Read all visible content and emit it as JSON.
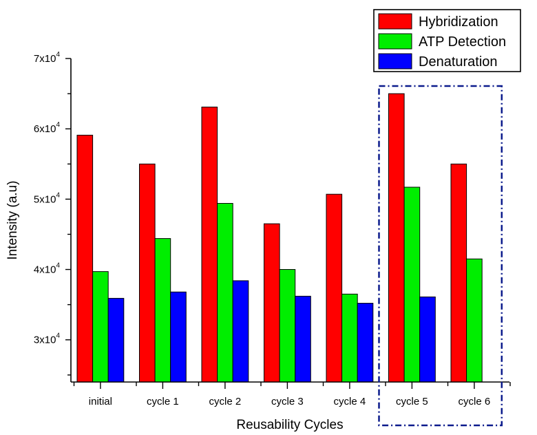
{
  "chart_data": {
    "type": "bar",
    "title": "",
    "xlabel": "Reusability Cycles",
    "ylabel": "Intensity (a.u)",
    "ylim": [
      24000,
      70000
    ],
    "y_ticks": [
      30000,
      40000,
      50000,
      60000,
      70000
    ],
    "y_tick_labels": [
      {
        "base": "3x10",
        "exp": "4"
      },
      {
        "base": "4x10",
        "exp": "4"
      },
      {
        "base": "5x10",
        "exp": "4"
      },
      {
        "base": "6x10",
        "exp": "4"
      },
      {
        "base": "7x10",
        "exp": "4"
      }
    ],
    "categories": [
      "initial",
      "cycle 1",
      "cycle 2",
      "cycle 3",
      "cycle 4",
      "cycle 5",
      "cycle 6"
    ],
    "series": [
      {
        "name": "Hybridization",
        "color": "#ff0000",
        "values": [
          59100,
          55000,
          63100,
          46500,
          50700,
          65000,
          55000
        ]
      },
      {
        "name": "ATP Detection",
        "color": "#00ee00",
        "values": [
          39700,
          44400,
          49400,
          40000,
          36500,
          51700,
          41500
        ]
      },
      {
        "name": "Denaturation",
        "color": "#0000ff",
        "values": [
          35900,
          36800,
          38400,
          36200,
          35200,
          36100,
          null
        ]
      }
    ],
    "legend_position": "top-right",
    "grid": false,
    "highlight": {
      "categories": [
        "cycle 5",
        "cycle 6"
      ],
      "style": "dash-dot box",
      "color": "#0a1a8c"
    }
  }
}
